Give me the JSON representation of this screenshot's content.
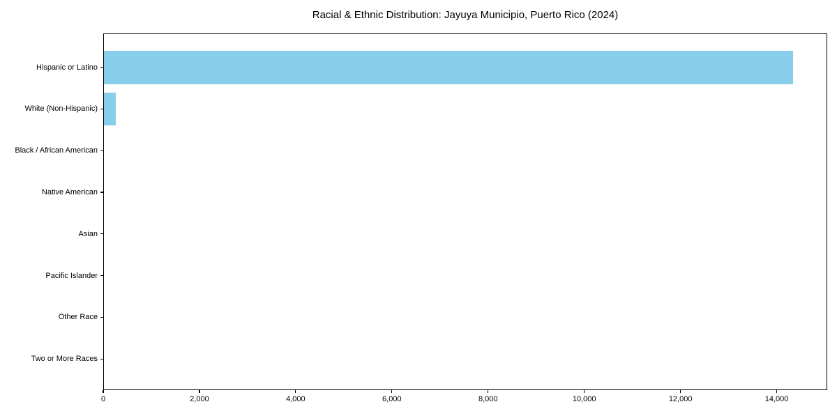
{
  "chart_data": {
    "type": "bar",
    "orientation": "horizontal",
    "title": "Racial & Ethnic Distribution: Jayuya Municipio, Puerto Rico (2024)",
    "categories": [
      "Hispanic or Latino",
      "White (Non-Hispanic)",
      "Black / African American",
      "Native American",
      "Asian",
      "Pacific Islander",
      "Other Race",
      "Two or More Races"
    ],
    "values": [
      14330,
      250,
      0,
      0,
      0,
      0,
      0,
      0
    ],
    "xlabel": "",
    "ylabel": "",
    "xlim": [
      0,
      15050
    ],
    "xticks": [
      {
        "value": 0,
        "label": "0"
      },
      {
        "value": 2000,
        "label": "2,000"
      },
      {
        "value": 4000,
        "label": "4,000"
      },
      {
        "value": 6000,
        "label": "6,000"
      },
      {
        "value": 8000,
        "label": "8,000"
      },
      {
        "value": 10000,
        "label": "10,000"
      },
      {
        "value": 12000,
        "label": "12,000"
      },
      {
        "value": 14000,
        "label": "14,000"
      }
    ],
    "bar_color": "#87CEEB",
    "axis_color": "#000000",
    "background_color": "#ffffff",
    "grid": false,
    "legend": false
  }
}
